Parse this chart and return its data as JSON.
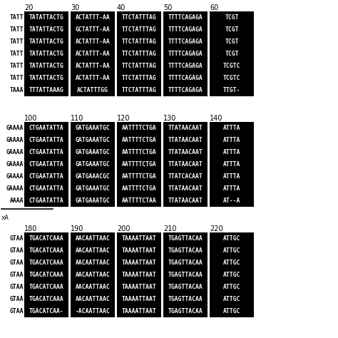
{
  "page_bg": "#ffffff",
  "font_size_seq": 5.8,
  "font_size_tick": 7.0,
  "blocks": [
    {
      "tick_positions": [
        20,
        30,
        40,
        50,
        60
      ],
      "rows": [
        {
          "left_text": "TATT",
          "segments": [
            "TATATTACTG",
            "ACTATTT-AA",
            "TTCTATTTAG",
            "TTTTCAGAGA",
            "TCGT"
          ]
        },
        {
          "left_text": "TATT",
          "segments": [
            "TATATTACTG",
            "GCTATTT-AA",
            "TTCTATTTAG",
            "TTTTCAGAGA",
            "TCGT"
          ]
        },
        {
          "left_text": "TATT",
          "segments": [
            "TATATTACTG",
            "ACTATTT-AA",
            "TTCTATTTAG",
            "TTTTCAGAGA",
            "TCGT"
          ]
        },
        {
          "left_text": "TATT",
          "segments": [
            "TATATTACTG",
            "ACTATTT-AA",
            "TTCTATTTAG",
            "TTTTCAGAGA",
            "TCGT"
          ]
        },
        {
          "left_text": "TATT",
          "segments": [
            "TATATTACTG",
            "ACTATTT-AA",
            "TTCTATTTAG",
            "TTTTCAGAGA",
            "TCGTC"
          ]
        },
        {
          "left_text": "TATT",
          "segments": [
            "TATATTACTG",
            "ACTATTT-AA",
            "TTCTATTTAG",
            "TTTTCAGAGA",
            "TCGTC"
          ]
        },
        {
          "left_text": "TAAA",
          "segments": [
            "TTTATTAAAG",
            "ACTATTTGG",
            "TTCTATTTAG",
            "TTTTCAGAGA",
            "TTGT-"
          ]
        }
      ],
      "underline": false,
      "underline_label": ""
    },
    {
      "tick_positions": [
        100,
        110,
        120,
        130,
        140
      ],
      "rows": [
        {
          "left_text": "GAAAA",
          "segments": [
            "CTGAATATTA",
            "GATGAAATGC",
            "AATTTTCTGA",
            "TTATAACAAT",
            "ATTTA"
          ]
        },
        {
          "left_text": "GAAAA",
          "segments": [
            "CTGAATATTA",
            "GATGAAATGC",
            "AATTTTCTGA",
            "TTATAACAAT",
            "ATTTA"
          ]
        },
        {
          "left_text": "GAAAA",
          "segments": [
            "CTGAATATTA",
            "GATGAAATGC",
            "AATTTTCTGA",
            "TTATAACAAT",
            "ATTTA"
          ]
        },
        {
          "left_text": "GAAAA",
          "segments": [
            "CTGAATATTA",
            "GATGAAATGC",
            "AATTTTCTGA",
            "TTATAACAAT",
            "ATTTA"
          ]
        },
        {
          "left_text": "GAAAA",
          "segments": [
            "CTGAATATTA",
            "GATGAAACGC",
            "AATTTTCTGA",
            "TTATCACAAT",
            "ATTTA"
          ]
        },
        {
          "left_text": "GAAAA",
          "segments": [
            "CTGAATATTA",
            "GATGAAATGC",
            "AATTTTCTGA",
            "TTATAACAAT",
            "ATTTA"
          ]
        },
        {
          "left_text": "AAAA",
          "segments": [
            "CTGAATATTA",
            "GATGAAATGC",
            "AATTTTCTAA",
            "TTATAACAAT",
            "AT--A"
          ]
        }
      ],
      "underline": true,
      "underline_label": "xA"
    },
    {
      "tick_positions": [
        180,
        190,
        200,
        210,
        220
      ],
      "rows": [
        {
          "left_text": "GTAA",
          "segments": [
            "TGACATCAAA",
            "AACAATTAAC",
            "TAAAATTAAT",
            "TGAGTTACAA",
            "ATTGC"
          ]
        },
        {
          "left_text": "GTAA",
          "segments": [
            "TGACATCAAA",
            "AACAATTAAC",
            "TAAAATTAAT",
            "TGAGTTACAA",
            "ATTGC"
          ]
        },
        {
          "left_text": "GTAA",
          "segments": [
            "TGACATCAAA",
            "AACAATTAAC",
            "TAAAATTAAT",
            "TGAGTTACAA",
            "ATTGC"
          ]
        },
        {
          "left_text": "GTAA",
          "segments": [
            "TGACATCAAA",
            "AACAATTAAC",
            "TAAAATTAAT",
            "TGAGTTACAA",
            "ATTGC"
          ]
        },
        {
          "left_text": "GTAA",
          "segments": [
            "TGACATCAAA",
            "AACAATTAAC",
            "TAAAATTAAT",
            "TGAGTTACAA",
            "ATTGC"
          ]
        },
        {
          "left_text": "GTAA",
          "segments": [
            "TGACATCAAA",
            "AACAATTAAC",
            "TAAAATTAAT",
            "TGAGTTACAA",
            "ATTGC"
          ]
        },
        {
          "left_text": "GTAA",
          "segments": [
            "TGACATCAA-",
            "-ACAATTAAC",
            "TAAAATTAAT",
            "TGAGTTACAA",
            "ATTGC"
          ]
        }
      ],
      "underline": false,
      "underline_label": ""
    }
  ]
}
